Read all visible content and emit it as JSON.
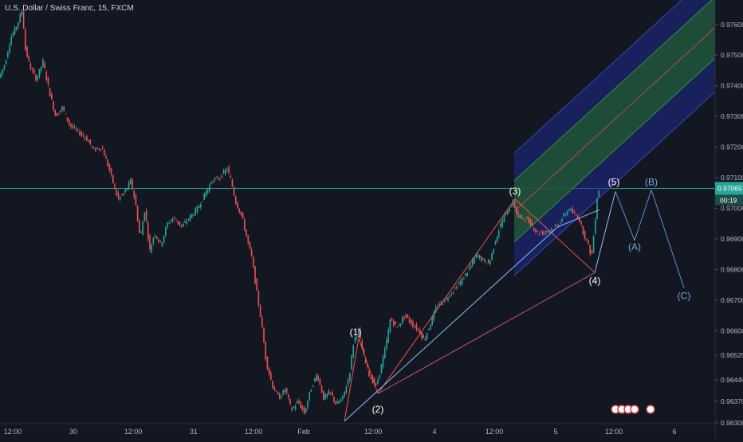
{
  "chart_data": {
    "type": "candlestick",
    "title": "U.S. Dollar / Swiss Franc, 15, FXCM",
    "ylim": [
      0.9625,
      0.9768
    ],
    "y_ticks": [
      "0.97600",
      "0.97500",
      "0.97400",
      "0.97300",
      "0.97200",
      "0.97100",
      "0.97000",
      "0.96900",
      "0.96800",
      "0.96700",
      "0.96600",
      "0.96520",
      "0.96440",
      "0.96370",
      "0.96300"
    ],
    "x_ticks": [
      "12:00",
      "30",
      "12:00",
      "31",
      "12:00",
      "Feb",
      "12:00",
      "4",
      "12:00",
      "5",
      "12:00",
      "6"
    ],
    "last_price": {
      "value": 0.97065,
      "label": "0.97065",
      "countdown": "00:19"
    },
    "price_path": [
      [
        0,
        0.9742
      ],
      [
        8,
        0.9747
      ],
      [
        16,
        0.9756
      ],
      [
        24,
        0.976
      ],
      [
        30,
        0.9765
      ],
      [
        34,
        0.9752
      ],
      [
        40,
        0.9746
      ],
      [
        48,
        0.9742
      ],
      [
        56,
        0.9748
      ],
      [
        64,
        0.9738
      ],
      [
        72,
        0.973
      ],
      [
        80,
        0.9733
      ],
      [
        90,
        0.9727
      ],
      [
        100,
        0.9725
      ],
      [
        110,
        0.9723
      ],
      [
        120,
        0.9719
      ],
      [
        130,
        0.972
      ],
      [
        140,
        0.9712
      ],
      [
        150,
        0.9703
      ],
      [
        158,
        0.9705
      ],
      [
        166,
        0.9709
      ],
      [
        172,
        0.9702
      ],
      [
        178,
        0.969
      ],
      [
        184,
        0.97
      ],
      [
        190,
        0.9686
      ],
      [
        196,
        0.9692
      ],
      [
        204,
        0.9688
      ],
      [
        212,
        0.9695
      ],
      [
        220,
        0.9697
      ],
      [
        230,
        0.9694
      ],
      [
        240,
        0.9697
      ],
      [
        250,
        0.97
      ],
      [
        260,
        0.9705
      ],
      [
        268,
        0.9709
      ],
      [
        278,
        0.971
      ],
      [
        287,
        0.9713
      ],
      [
        292,
        0.9709
      ],
      [
        298,
        0.9702
      ],
      [
        306,
        0.9697
      ],
      [
        312,
        0.969
      ],
      [
        318,
        0.9684
      ],
      [
        324,
        0.9673
      ],
      [
        330,
        0.9663
      ],
      [
        336,
        0.965
      ],
      [
        344,
        0.9642
      ],
      [
        352,
        0.9638
      ],
      [
        360,
        0.9641
      ],
      [
        368,
        0.9634
      ],
      [
        376,
        0.9637
      ],
      [
        384,
        0.9633
      ],
      [
        392,
        0.9641
      ],
      [
        400,
        0.9646
      ],
      [
        408,
        0.9638
      ],
      [
        416,
        0.964
      ],
      [
        424,
        0.9636
      ],
      [
        432,
        0.9638
      ],
      [
        440,
        0.9645
      ],
      [
        446,
        0.9657
      ],
      [
        452,
        0.966
      ],
      [
        458,
        0.9652
      ],
      [
        466,
        0.9645
      ],
      [
        474,
        0.9642
      ],
      [
        480,
        0.9648
      ],
      [
        486,
        0.9655
      ],
      [
        492,
        0.9664
      ],
      [
        500,
        0.9661
      ],
      [
        510,
        0.9665
      ],
      [
        520,
        0.9662
      ],
      [
        528,
        0.966
      ],
      [
        534,
        0.9657
      ],
      [
        540,
        0.9661
      ],
      [
        550,
        0.9668
      ],
      [
        560,
        0.967
      ],
      [
        570,
        0.9673
      ],
      [
        580,
        0.9676
      ],
      [
        590,
        0.968
      ],
      [
        600,
        0.9685
      ],
      [
        608,
        0.9683
      ],
      [
        616,
        0.9682
      ],
      [
        624,
        0.969
      ],
      [
        632,
        0.9696
      ],
      [
        640,
        0.97
      ],
      [
        646,
        0.9702
      ],
      [
        652,
        0.9697
      ],
      [
        660,
        0.9697
      ],
      [
        668,
        0.9695
      ],
      [
        676,
        0.9692
      ],
      [
        684,
        0.9692
      ],
      [
        692,
        0.9693
      ],
      [
        700,
        0.9694
      ],
      [
        708,
        0.9697
      ],
      [
        716,
        0.97
      ],
      [
        722,
        0.9698
      ],
      [
        728,
        0.9697
      ],
      [
        734,
        0.9692
      ],
      [
        740,
        0.9688
      ],
      [
        744,
        0.9684
      ],
      [
        748,
        0.9694
      ],
      [
        752,
        0.9706
      ]
    ],
    "wave_labels": [
      {
        "label": "(1)",
        "x": 446,
        "y": 0.9657
      },
      {
        "label": "(2)",
        "x": 474,
        "y": 0.9637
      },
      {
        "label": "(3)",
        "x": 646,
        "y": 0.9703
      },
      {
        "label": "(4)",
        "x": 746,
        "y": 0.9679
      },
      {
        "label": "(5)",
        "x": 770,
        "y": 0.9706
      },
      {
        "label": "(A)",
        "x": 796,
        "y": 0.969
      },
      {
        "label": "(B)",
        "x": 817,
        "y": 0.9706
      },
      {
        "label": "(C)",
        "x": 858,
        "y": 0.9674
      }
    ],
    "colors": {
      "background": "#131722",
      "up": "#26a69a",
      "down": "#ef5350",
      "axis_text": "#b2b5be",
      "current_price": "#26a69a",
      "wave_up": "#8cb8ff",
      "wave_down": "#ef5350",
      "channel_outer": "#1e2a8c",
      "channel_inner": "#1f5c2c",
      "projection": "#5d8fc7"
    }
  }
}
